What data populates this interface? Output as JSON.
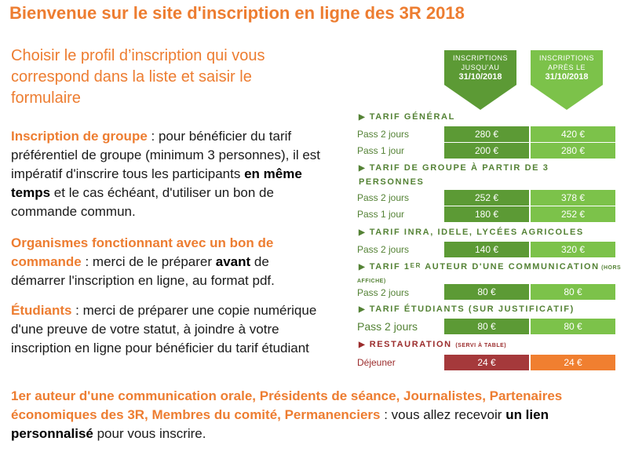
{
  "page": {
    "title": "Bienvenue sur le site d'inscription en ligne des 3R 2018",
    "subtitle": "Choisir le profil d’inscription qui vous correspond dans la liste et saisir le formulaire"
  },
  "info": {
    "group_heading": "Inscription de groupe",
    "group_text1": " : pour bénéficier du tarif préférentiel de groupe (minimum 3 personnes), il est impératif d'inscrire tous les participants ",
    "group_bold": "en même temps",
    "group_text2": " et le cas échéant, d'utiliser un bon de commande commun.",
    "org_heading": "Organismes fonctionnant avec un bon de commande",
    "org_text1": " : merci de le préparer ",
    "org_bold": "avant",
    "org_text2": " de démarrer l'inscription en ligne, au format pdf.",
    "student_heading": "Étudiants",
    "student_text": " : merci de préparer une copie numérique d'une preuve de votre statut, à joindre à votre inscription en ligne pour bénéficier du tarif étudiant",
    "special_heading": "1er auteur d'une communication orale, Présidents de séance, Journalistes, Partenaires économiques des 3R, Membres du comité, Permanenciers",
    "special_text1": " : vous allez recevoir ",
    "special_bold": "un lien personnalisé",
    "special_text2": " pour vous inscrire."
  },
  "tarifs": {
    "col1_line1": "INSCRIPTIONS JUSQU'AU",
    "col1_line2": "31/10/2018",
    "col2_line1": "INSCRIPTIONS APRÈS LE",
    "col2_line2": "31/10/2018",
    "arrow": "▶",
    "sections": {
      "general": "TARIF GÉNÉRAL",
      "groupe": "TARIF DE GROUPE À PARTIR DE 3",
      "groupe_cont": "PERSONNES",
      "inra": "TARIF INRA, IDELE, LYCÉES AGRICOLES",
      "auteur_a": "TARIF 1",
      "auteur_sup": "ER",
      "auteur_b": " AUTEUR D'UNE COMMUNICATION",
      "auteur_small": " (HORS",
      "auteur_small2": "AFFICHE)",
      "etudiants": "TARIF ÉTUDIANTS (SUR JUSTIFICATIF)",
      "restauration": "RESTAURATION",
      "restauration_small": "(SERVI À TABLE)"
    },
    "rows": {
      "gen_pass2": {
        "label": "Pass 2 jours",
        "v1": "280 €",
        "v2": "420 €"
      },
      "gen_pass1": {
        "label": "Pass 1 jour",
        "v1": "200 €",
        "v2": "280 €"
      },
      "grp_pass2": {
        "label": "Pass 2 jours",
        "v1": "252 €",
        "v2": "378 €"
      },
      "grp_pass1": {
        "label": "Pass 1 jour",
        "v1": "180 €",
        "v2": "252 €"
      },
      "inra_pass2": {
        "label": "Pass 2 jours",
        "v1": "140 €",
        "v2": "320 €"
      },
      "aut_pass2": {
        "label": "Pass 2 jours",
        "v1": "80 €",
        "v2": "80 €"
      },
      "etu_pass2": {
        "label": "Pass 2 jours",
        "v1": "80 €",
        "v2": "80 €"
      },
      "dej": {
        "label": "Déjeuner",
        "v1": "24 €",
        "v2": "24 €"
      }
    }
  }
}
